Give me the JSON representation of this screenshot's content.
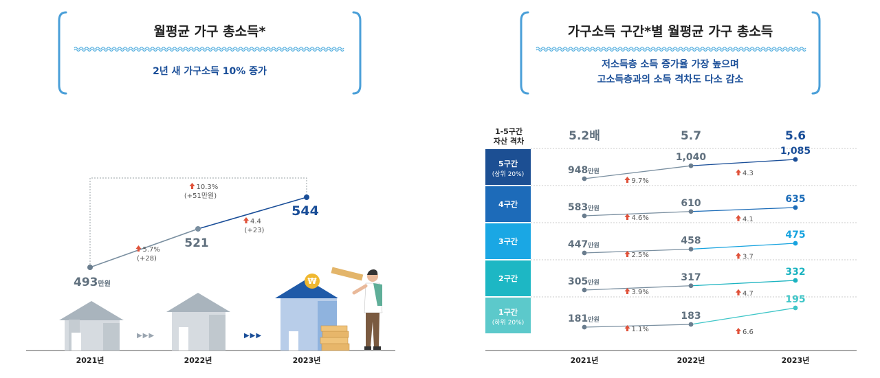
{
  "left_panel": {
    "title": "월평균 가구 총소득*",
    "subtitle": "2년 새 가구소득 10% 증가",
    "chart_data": {
      "type": "line",
      "categories": [
        "2021년",
        "2022년",
        "2023년"
      ],
      "values": [
        493,
        521,
        544
      ],
      "value_labels": [
        "493만원",
        "521",
        "544"
      ],
      "unit": "만원",
      "changes": [
        {
          "from": "2021년",
          "to": "2022년",
          "pct": "5.7%",
          "amount": "(+28)"
        },
        {
          "from": "2022년",
          "to": "2023년",
          "pct": "4.4",
          "amount": "(+23)"
        },
        {
          "from": "2021년",
          "to": "2023년",
          "pct": "10.3%",
          "amount": "(+51만원)"
        }
      ],
      "colors": {
        "line_2021_2022": "#7a8fa0",
        "line_2022_2023": "#1a4e98",
        "highlight": "#1a4e98"
      }
    },
    "arrows_glyph": "▶▶▶",
    "coin_glyph": "₩"
  },
  "right_panel": {
    "title": "가구소득 구간*별 월평균 가구 총소득",
    "subtitle_lines": [
      "저소득층 소득 증가율 가장 높으며",
      "고소득층과의 소득 격차도 다소 감소"
    ],
    "gap_label_lines": [
      "1-5구간",
      "자산 격차"
    ],
    "gap_values": [
      "5.2배",
      "5.7",
      "5.6"
    ],
    "chart_data": {
      "type": "line",
      "categories": [
        "2021년",
        "2022년",
        "2023년"
      ],
      "unit": "만원",
      "series": [
        {
          "name": "5구간",
          "note": "(상위 20%)",
          "values": [
            948,
            1040,
            1085
          ],
          "labels": [
            "948만원",
            "1,040",
            "1,085"
          ],
          "changes": [
            "9.7%",
            "4.3"
          ],
          "color": "#1a4e98",
          "band_color": "#1c4f93"
        },
        {
          "name": "4구간",
          "note": "",
          "values": [
            583,
            610,
            635
          ],
          "labels": [
            "583만원",
            "610",
            "635"
          ],
          "changes": [
            "4.6%",
            "4.1"
          ],
          "color": "#1c6cb8",
          "band_color": "#1d6bb9"
        },
        {
          "name": "3구간",
          "note": "",
          "values": [
            447,
            458,
            475
          ],
          "labels": [
            "447만원",
            "458",
            "475"
          ],
          "changes": [
            "2.5%",
            "3.7"
          ],
          "color": "#17a3df",
          "band_color": "#1aa7e4"
        },
        {
          "name": "2구간",
          "note": "",
          "values": [
            305,
            317,
            332
          ],
          "labels": [
            "305만원",
            "317",
            "332"
          ],
          "changes": [
            "3.9%",
            "4.7"
          ],
          "color": "#1ab3c0",
          "band_color": "#1db7c4"
        },
        {
          "name": "1구간",
          "note": "(하위 20%)",
          "values": [
            181,
            183,
            195
          ],
          "labels": [
            "181만원",
            "183",
            "195"
          ],
          "changes": [
            "1.1%",
            "6.6"
          ],
          "color": "#3fc6c8",
          "band_color": "#5cc9cb"
        }
      ]
    }
  }
}
